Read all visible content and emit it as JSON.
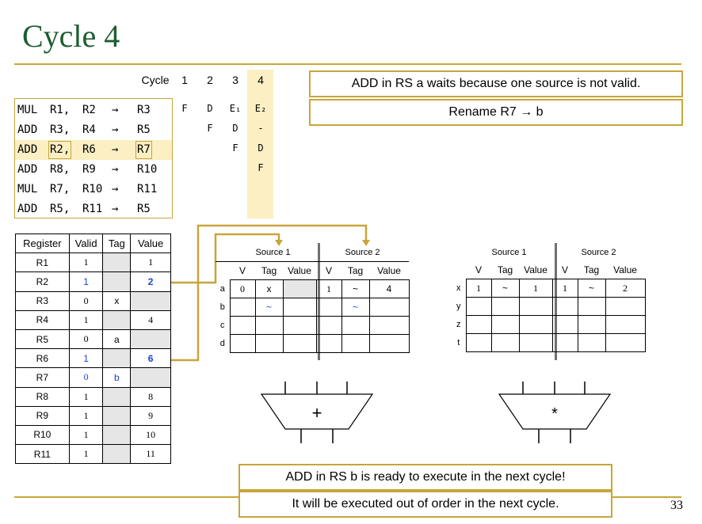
{
  "title": "Cycle 4",
  "page_number": "33",
  "cycle_header": {
    "label": "Cycle",
    "cycles": [
      "1",
      "2",
      "3",
      "4"
    ]
  },
  "instructions": [
    {
      "op": "MUL",
      "src1": "R1,",
      "src2": "R2",
      "arrow": "→",
      "dst": "R3",
      "stages": [
        "F",
        "D",
        "E₁",
        "E₂"
      ]
    },
    {
      "op": "ADD",
      "src1": "R3,",
      "src2": "R4",
      "arrow": "→",
      "dst": "R5",
      "stages": [
        "",
        "F",
        "D",
        "-"
      ]
    },
    {
      "op": "ADD",
      "src1": "R2,",
      "src2": "R6",
      "arrow": "→",
      "dst": "R7",
      "stages": [
        "",
        "",
        "F",
        "D"
      ]
    },
    {
      "op": "ADD",
      "src1": "R8,",
      "src2": "R9",
      "arrow": "→",
      "dst": "R10",
      "stages": [
        "",
        "",
        "",
        "F"
      ]
    },
    {
      "op": "MUL",
      "src1": "R7,",
      "src2": "R10",
      "arrow": "→",
      "dst": "R11",
      "stages": [
        "",
        "",
        "",
        ""
      ]
    },
    {
      "op": "ADD",
      "src1": "R5,",
      "src2": "R11",
      "arrow": "→",
      "dst": "R5",
      "stages": [
        "",
        "",
        "",
        ""
      ]
    }
  ],
  "notes": {
    "top1": "ADD in RS a waits because one source is not valid.",
    "top2": "Rename R7 → b",
    "bottom1": "ADD in RS b is ready to execute in the next cycle!",
    "bottom2": "It will be executed out of order in the next cycle."
  },
  "register_file": {
    "headers": [
      "Register",
      "Valid",
      "Tag",
      "Value"
    ],
    "rows": [
      {
        "reg": "R1",
        "valid": "1",
        "tag": "",
        "value": "1"
      },
      {
        "reg": "R2",
        "valid": "1",
        "tag": "",
        "value": "2"
      },
      {
        "reg": "R3",
        "valid": "0",
        "tag": "x",
        "value": ""
      },
      {
        "reg": "R4",
        "valid": "1",
        "tag": "",
        "value": "4"
      },
      {
        "reg": "R5",
        "valid": "0",
        "tag": "a",
        "value": ""
      },
      {
        "reg": "R6",
        "valid": "1",
        "tag": "",
        "value": "6"
      },
      {
        "reg": "R7",
        "valid": "0",
        "tag": "b",
        "value": ""
      },
      {
        "reg": "R8",
        "valid": "1",
        "tag": "",
        "value": "8"
      },
      {
        "reg": "R9",
        "valid": "1",
        "tag": "",
        "value": "9"
      },
      {
        "reg": "R10",
        "valid": "1",
        "tag": "",
        "value": "10"
      },
      {
        "reg": "R11",
        "valid": "1",
        "tag": "",
        "value": "11"
      }
    ]
  },
  "rs_add": {
    "source1": "Source 1",
    "source2": "Source 2",
    "cols": [
      "V",
      "Tag",
      "Value",
      "V",
      "Tag",
      "Value"
    ],
    "rows": [
      {
        "label": "a",
        "cells": [
          "0",
          "x",
          "",
          "1",
          "~",
          "4"
        ]
      },
      {
        "label": "b",
        "cells": [
          "",
          "~",
          "",
          "",
          "~",
          ""
        ]
      },
      {
        "label": "c",
        "cells": [
          "",
          "",
          "",
          "",
          "",
          ""
        ]
      },
      {
        "label": "d",
        "cells": [
          "",
          "",
          "",
          "",
          "",
          ""
        ]
      }
    ],
    "unit_symbol": "+"
  },
  "rs_mul": {
    "source1": "Source 1",
    "source2": "Source 2",
    "cols": [
      "V",
      "Tag",
      "Value",
      "V",
      "Tag",
      "Value"
    ],
    "rows": [
      {
        "label": "x",
        "cells": [
          "1",
          "~",
          "1",
          "1",
          "~",
          "2"
        ]
      },
      {
        "label": "y",
        "cells": [
          "",
          "",
          "",
          "",
          "",
          ""
        ]
      },
      {
        "label": "z",
        "cells": [
          "",
          "",
          "",
          "",
          "",
          ""
        ]
      },
      {
        "label": "t",
        "cells": [
          "",
          "",
          "",
          "",
          "",
          ""
        ]
      }
    ],
    "unit_symbol": "*"
  },
  "colors": {
    "accent": "#c8a53a",
    "title": "#1e5c32",
    "highlight": "#fbefc3",
    "blue": "#1a3fd6"
  }
}
